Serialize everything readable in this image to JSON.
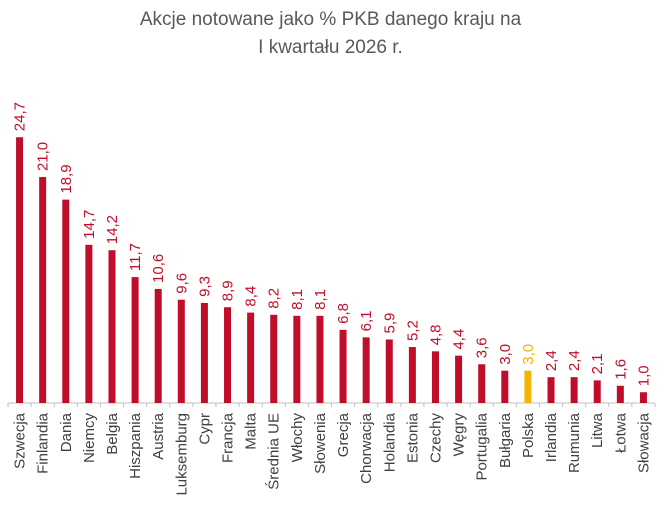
{
  "title_line1": "Akcje notowane jako % PKB danego kraju na",
  "title_line2": "I kwartału 2026 r.",
  "colors": {
    "default": "#C00D2A",
    "highlight": "#F2B600",
    "axis": "#BFBFBF",
    "label": "#C00D2A",
    "category": "#404040"
  },
  "chart_data": {
    "type": "bar",
    "title": "Akcje notowane jako % PKB danego kraju na I kwartału 2026 r.",
    "categories": [
      "Szwecja",
      "Finlandia",
      "Dania",
      "Niemcy",
      "Belgia",
      "Hiszpania",
      "Austria",
      "Luksemburg",
      "Cypr",
      "Francja",
      "Malta",
      "Średnia UE",
      "Włochy",
      "Słowenia",
      "Grecja",
      "Chorwacja",
      "Holandia",
      "Estonia",
      "Czechy",
      "Węgry",
      "Portugalia",
      "Bułgaria",
      "Polska",
      "Irlandia",
      "Rumunia",
      "Litwa",
      "Łotwa",
      "Słowacja"
    ],
    "values": [
      24.7,
      21.0,
      18.9,
      14.7,
      14.2,
      11.7,
      10.6,
      9.6,
      9.3,
      8.9,
      8.4,
      8.2,
      8.1,
      8.1,
      6.8,
      6.1,
      5.9,
      5.2,
      4.8,
      4.4,
      3.6,
      3.0,
      3.0,
      2.4,
      2.4,
      2.1,
      1.6,
      1.0
    ],
    "value_labels": [
      "24,7",
      "21,0",
      "18,9",
      "14,7",
      "14,2",
      "11,7",
      "10,6",
      "9,6",
      "9,3",
      "8,9",
      "8,4",
      "8,2",
      "8,1",
      "8,1",
      "6,8",
      "6,1",
      "5,9",
      "5,2",
      "4,8",
      "4,4",
      "3,6",
      "3,0",
      "3,0",
      "2,4",
      "2,4",
      "2,1",
      "1,6",
      "1,0"
    ],
    "highlight_category": "Polska",
    "xlabel": "",
    "ylabel": "",
    "grid": false
  }
}
